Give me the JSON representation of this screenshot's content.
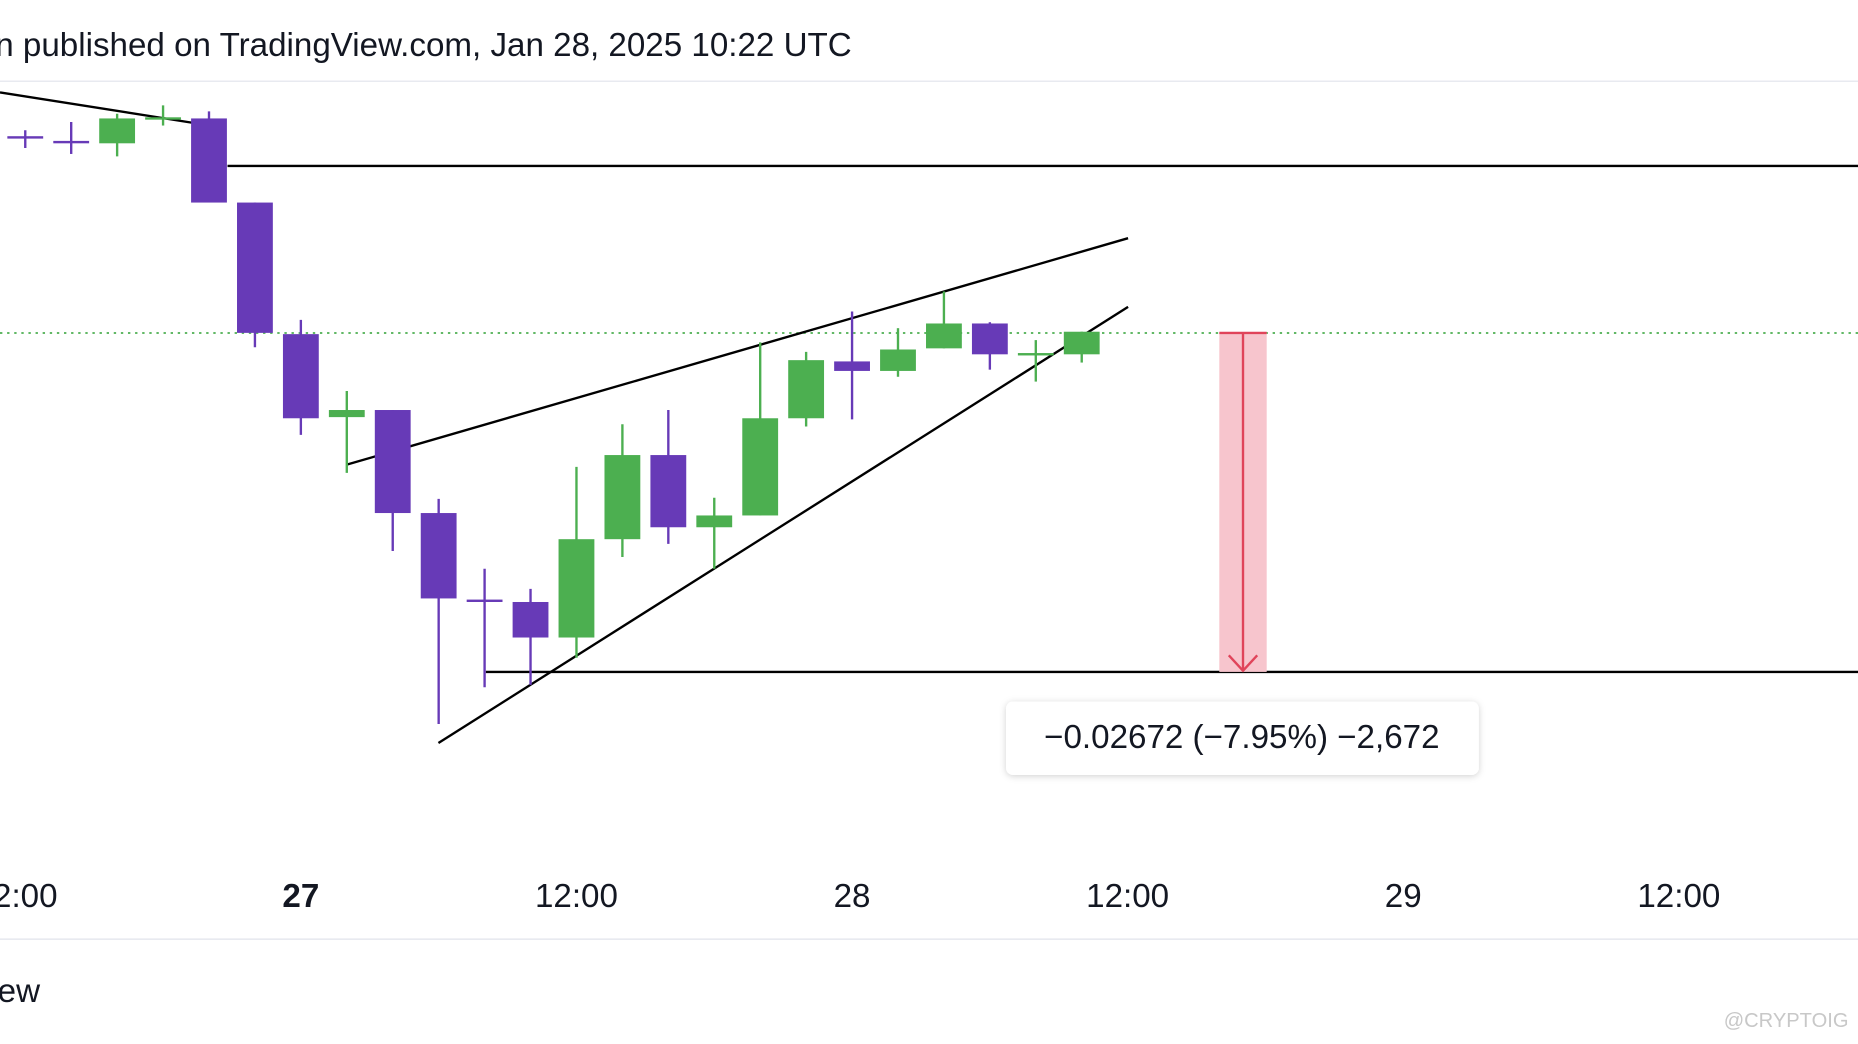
{
  "header": {
    "title": "n published on TradingView.com, Jan 28, 2025 10:22 UTC"
  },
  "chart_data": {
    "type": "candlestick",
    "x": [
      -12,
      -10,
      -8,
      -6,
      -4,
      -2,
      0,
      2,
      4,
      6,
      8,
      10,
      12,
      14,
      16,
      18,
      20,
      22,
      24,
      26,
      28,
      30,
      32,
      34
    ],
    "open": [
      0.35161,
      0.35124,
      0.35105,
      0.35301,
      0.35301,
      0.34638,
      0.33601,
      0.32947,
      0.33003,
      0.32191,
      0.31509,
      0.3149,
      0.3121,
      0.31985,
      0.32648,
      0.32079,
      0.32172,
      0.32938,
      0.33386,
      0.33311,
      0.33489,
      0.33685,
      0.33433,
      0.33442
    ],
    "high": [
      0.35208,
      0.35273,
      0.35338,
      0.35404,
      0.35357,
      0.34638,
      0.33713,
      0.33153,
      0.33003,
      0.32303,
      0.31752,
      0.31593,
      0.32555,
      0.32891,
      0.33003,
      0.32312,
      0.33536,
      0.33461,
      0.33779,
      0.33648,
      0.33937,
      0.33695,
      0.33554,
      0.3362
    ],
    "low": [
      0.35068,
      0.35021,
      0.35002,
      0.35245,
      0.34638,
      0.33498,
      0.32807,
      0.32508,
      0.31892,
      0.30528,
      0.30818,
      0.30837,
      0.31051,
      0.31845,
      0.31948,
      0.31752,
      0.32172,
      0.32873,
      0.32929,
      0.33265,
      0.33489,
      0.33321,
      0.33227,
      0.33377
    ],
    "close": [
      0.35142,
      0.35105,
      0.35301,
      0.3531,
      0.34638,
      0.33611,
      0.32938,
      0.33003,
      0.32191,
      0.31518,
      0.3149,
      0.3121,
      0.31985,
      0.32648,
      0.32079,
      0.32172,
      0.32938,
      0.33396,
      0.33311,
      0.3348,
      0.33685,
      0.33442,
      0.33452,
      0.3362
    ],
    "up_color": "#4caf50",
    "down_color": "#673ab7",
    "xlim": [
      -13.1,
      67.8
    ],
    "ylim": [
      0.2937,
      0.3559
    ],
    "xticks": [
      {
        "value": -12,
        "label": "2:00"
      },
      {
        "value": 0,
        "label": "27"
      },
      {
        "value": 12,
        "label": "12:00"
      },
      {
        "value": 24,
        "label": "28"
      },
      {
        "value": 36,
        "label": "12:00"
      },
      {
        "value": 48,
        "label": "29"
      },
      {
        "value": 60,
        "label": "12:00"
      }
    ],
    "annotation": "−0.02672 (−7.95%) −2,672"
  },
  "footer": {
    "brand": "ew",
    "watermark": "@CRYPTOIG"
  }
}
